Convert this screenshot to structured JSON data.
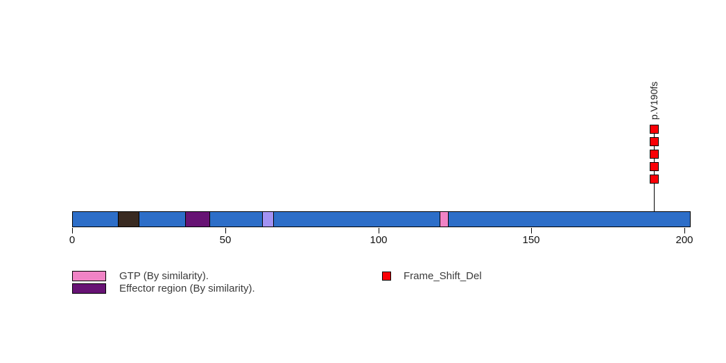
{
  "chart_data": {
    "type": "lollipop",
    "title": "",
    "xlabel": "",
    "protein_length": 202,
    "xlim": [
      0,
      202
    ],
    "xticks": [
      0,
      50,
      100,
      150,
      200
    ],
    "grid": false,
    "bar_color": "#2d6ec8",
    "bar_border_color": "#000000",
    "domains": [
      {
        "start": 15,
        "end": 22,
        "color": "#392a21"
      },
      {
        "start": 37,
        "end": 45,
        "color": "#671374",
        "name": "Effector region (By similarity)."
      },
      {
        "start": 62,
        "end": 66,
        "color": "#a292f2"
      },
      {
        "start": 120,
        "end": 123,
        "color": "#f083c5",
        "name": "GTP (By similarity)."
      }
    ],
    "mutations": [
      {
        "label": "p.V190fs",
        "position": 190,
        "count": 5,
        "type": "Frame_Shift_Del",
        "color": "#fb0006",
        "border_color": "#000000"
      }
    ],
    "legend": {
      "features": [
        {
          "label": "GTP (By similarity).",
          "color": "#f083c5"
        },
        {
          "label": "Effector region (By similarity).",
          "color": "#671374"
        }
      ],
      "mutation_types": [
        {
          "label": "Frame_Shift_Del",
          "color": "#fb0006"
        }
      ]
    },
    "axis_text_color": "#111111",
    "legend_text_color": "#3a3a3a"
  }
}
